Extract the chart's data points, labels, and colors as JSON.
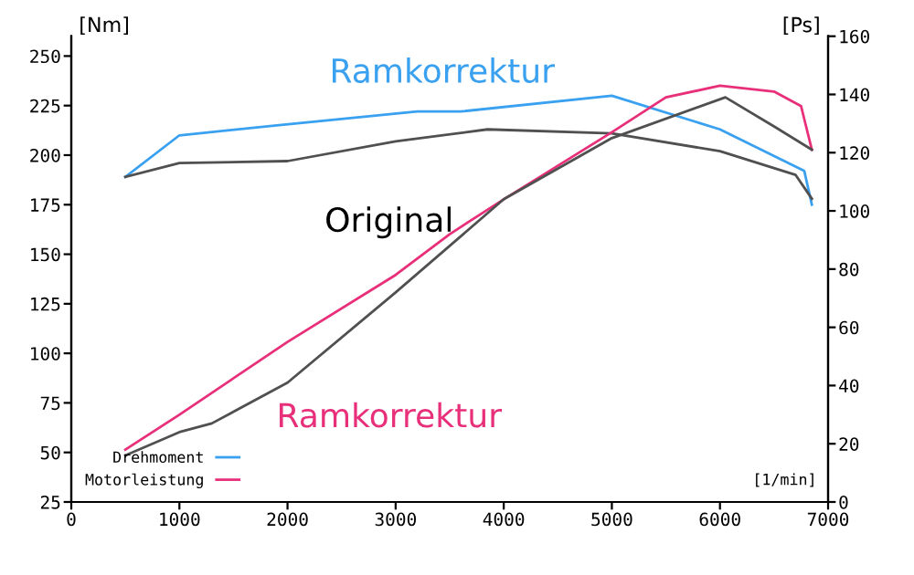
{
  "chart_data": {
    "type": "line",
    "xlabel": "[1/min]",
    "ylabel": "[Nm]",
    "y2label": "[Ps]",
    "xlim": [
      0,
      7000
    ],
    "xticks": [
      0,
      1000,
      2000,
      3000,
      4000,
      5000,
      6000,
      7000
    ],
    "ylim": [
      25,
      260
    ],
    "yticks": [
      25,
      50,
      75,
      100,
      125,
      150,
      175,
      200,
      225,
      250
    ],
    "y2lim": [
      0,
      160
    ],
    "y2ticks": [
      0,
      20,
      40,
      60,
      80,
      100,
      120,
      140,
      160
    ],
    "grid": false,
    "legend": "bottom left",
    "marker": "none",
    "line_style": "solid",
    "series": [
      {
        "name": "Drehmoment",
        "color": "#3aa0f0",
        "x": [
          500,
          1000,
          1900,
          3200,
          3600,
          5000,
          6000,
          6780,
          6850
        ],
        "values": [
          189,
          210,
          215,
          222,
          222,
          230,
          213,
          192,
          175
        ]
      },
      {
        "color": "#505050",
        "x": [
          500,
          1000,
          2000,
          3000,
          3850,
          5000,
          6000,
          6700,
          6850
        ],
        "values": [
          189,
          196,
          197,
          207,
          213,
          211,
          202,
          190,
          178
        ]
      },
      {
        "name": "Motorleistung",
        "color": "#e8307a",
        "axis": "y2",
        "x": [
          500,
          1000,
          2000,
          3000,
          3500,
          4000,
          5000,
          5500,
          6000,
          6500,
          6750,
          6850
        ],
        "values": [
          18,
          30,
          55,
          78,
          92,
          104,
          127,
          139,
          143,
          141,
          136,
          121
        ]
      },
      {
        "color": "#505050",
        "axis": "y2",
        "x": [
          500,
          1000,
          1300,
          2000,
          3000,
          4000,
          5000,
          6050,
          6500,
          6850
        ],
        "values": [
          16,
          24,
          27,
          41,
          72,
          104,
          125,
          139,
          129,
          121
        ]
      }
    ],
    "annotations": [
      "Ramkorrektur",
      "Original",
      "Ramkorrektur"
    ]
  }
}
